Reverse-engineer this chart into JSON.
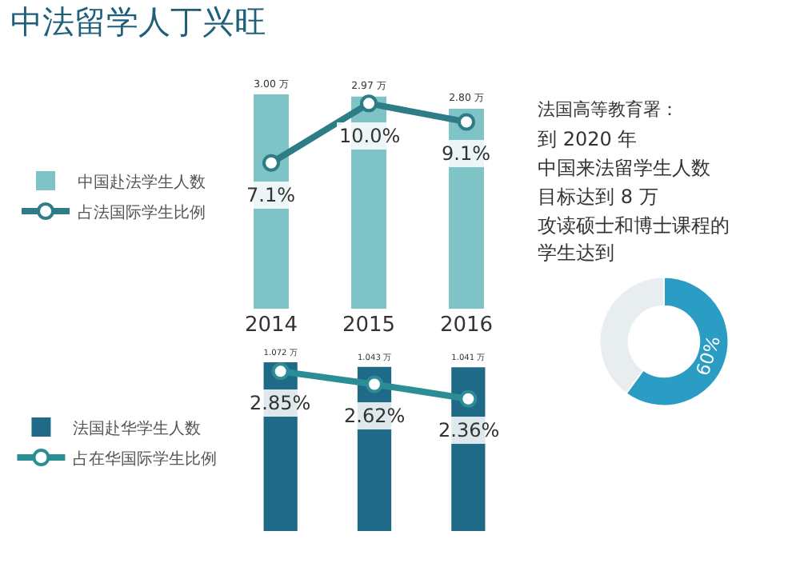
{
  "chart_data": [
    {
      "type": "bar",
      "title": "中法留学人丁兴旺",
      "categories": [
        "2014",
        "2015",
        "2016"
      ],
      "legend": "left",
      "marker": "circle",
      "grid": false,
      "series": [
        {
          "name": "中国赴法学生人数",
          "type": "bar",
          "color": "#7ec3c6",
          "values": [
            3.0,
            2.97,
            2.8
          ],
          "value_labels": [
            "3.00 万",
            "2.97 万",
            "2.80 万"
          ]
        },
        {
          "name": "占法国际学生比例",
          "type": "line",
          "axis": "y2",
          "color": "#2e7d86",
          "values": [
            7.1,
            10.0,
            9.1
          ],
          "value_labels": [
            "7.1%",
            "10.0%",
            "9.1%"
          ]
        }
      ]
    },
    {
      "type": "bar",
      "categories": [
        "2014",
        "2015",
        "2016"
      ],
      "legend": "left",
      "marker": "circle",
      "grid": false,
      "tick_labels": false,
      "series": [
        {
          "name": "法国赴华学生人数",
          "type": "bar",
          "color": "#1f6a86",
          "values": [
            1.072,
            1.043,
            1.041
          ],
          "value_labels": [
            "1.072 万",
            "1.043 万",
            "1.041 万"
          ]
        },
        {
          "name": "占在华国际学生比例",
          "type": "line",
          "axis": "y2",
          "color": "#2b8d96",
          "values": [
            2.85,
            2.62,
            2.36
          ],
          "value_labels": [
            "2.85%",
            "2.62%",
            "2.36%"
          ]
        }
      ]
    },
    {
      "type": "donut",
      "categories": [
        null,
        null
      ],
      "values": [
        60,
        40
      ],
      "colors": [
        "#2b9cc4",
        "#e8eef0"
      ],
      "value_labels": [
        "60%",
        null
      ],
      "annotations": [
        "法国高等教育署：",
        "到 2020 年",
        "中国来法留学生人数",
        "目标达到 8 万",
        "攻读硕士和博士课程的",
        "学生达到"
      ]
    }
  ]
}
